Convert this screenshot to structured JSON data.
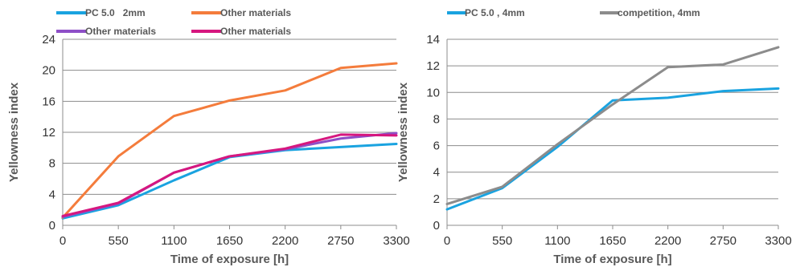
{
  "chart_data": [
    {
      "type": "line",
      "title": "",
      "xlabel": "Time of exposure [h]",
      "ylabel": "Yellowness index",
      "x": [
        0,
        550,
        1100,
        1650,
        2200,
        2750,
        3300
      ],
      "xlim": [
        0,
        3300
      ],
      "ylim": [
        0,
        24
      ],
      "yticks": [
        0,
        4,
        8,
        12,
        16,
        20,
        24
      ],
      "grid": true,
      "legend_position": "top",
      "series": [
        {
          "name": "PC 5.0   2mm",
          "color": "#1aa3e0",
          "values": [
            0.9,
            2.6,
            5.8,
            8.8,
            9.7,
            10.1,
            10.5
          ]
        },
        {
          "name": "Other materials",
          "color": "#f47c3c",
          "values": [
            1.0,
            8.9,
            14.1,
            16.1,
            17.4,
            20.3,
            20.9
          ]
        },
        {
          "name": "Other materials",
          "color": "#8e4fc7",
          "values": [
            1.1,
            2.8,
            6.8,
            8.9,
            9.8,
            11.2,
            11.9
          ]
        },
        {
          "name": "Other materials",
          "color": "#d6177f",
          "values": [
            1.2,
            2.9,
            6.8,
            8.9,
            9.9,
            11.7,
            11.6
          ]
        }
      ]
    },
    {
      "type": "line",
      "title": "",
      "xlabel": "Time of exposure [h]",
      "ylabel": "Yellowness index",
      "x": [
        0,
        550,
        1100,
        1650,
        2200,
        2750,
        3300
      ],
      "xlim": [
        0,
        3300
      ],
      "ylim": [
        0,
        14
      ],
      "yticks": [
        0,
        2,
        4,
        6,
        8,
        10,
        12,
        14
      ],
      "grid": true,
      "legend_position": "top",
      "series": [
        {
          "name": "PC 5.0 , 4mm",
          "color": "#1aa3e0",
          "values": [
            1.2,
            2.8,
            5.9,
            9.4,
            9.6,
            10.1,
            10.3
          ]
        },
        {
          "name": "competition, 4mm",
          "color": "#8c8c8c",
          "values": [
            1.6,
            2.9,
            6.1,
            9.1,
            11.9,
            12.1,
            13.4
          ]
        }
      ]
    }
  ]
}
